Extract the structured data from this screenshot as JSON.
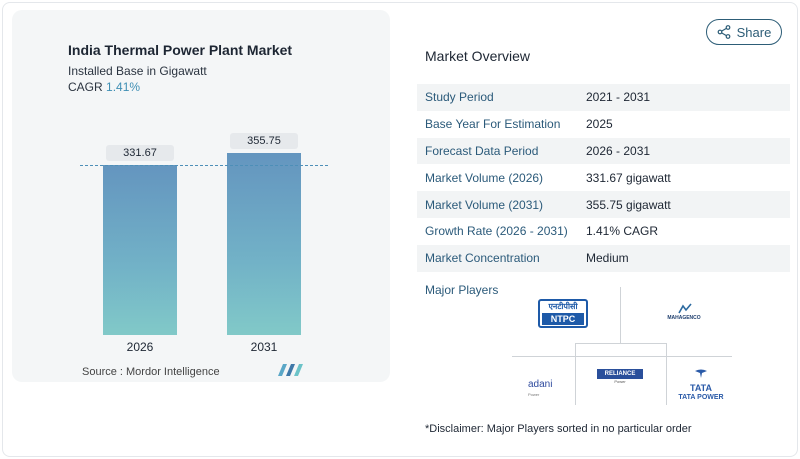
{
  "chart": {
    "title": "India Thermal Power Plant Market",
    "subtitle": "Installed Base in Gigawatt",
    "cagr_label": "CAGR",
    "cagr_value": "1.41%",
    "source": "Source :  Mordor Intelligence"
  },
  "chart_data": {
    "type": "bar",
    "categories": [
      "2026",
      "2031"
    ],
    "values": [
      331.67,
      355.75
    ],
    "value_labels": [
      "331.67",
      "355.75"
    ],
    "title": "India Thermal Power Plant Market",
    "subtitle": "Installed Base in Gigawatt",
    "ylabel": "",
    "xlabel": "",
    "ylim": [
      0,
      355.75
    ],
    "grid": false,
    "legend": "none"
  },
  "share": {
    "label": "Share"
  },
  "overview": {
    "title": "Market Overview",
    "rows": [
      {
        "key": "Study Period",
        "value": "2021 - 2031"
      },
      {
        "key": "Base Year For Estimation",
        "value": "2025"
      },
      {
        "key": "Forecast Data Period",
        "value": "2026 - 2031"
      },
      {
        "key": "Market Volume (2026)",
        "value": "331.67 gigawatt"
      },
      {
        "key": "Market Volume (2031)",
        "value": "355.75 gigawatt"
      },
      {
        "key": "Growth Rate (2026 - 2031)",
        "value": "1.41% CAGR"
      },
      {
        "key": "Market Concentration",
        "value": "Medium"
      }
    ]
  },
  "players": {
    "title": "Major Players",
    "logos": {
      "ntpc_top": "एनटीपीसी",
      "ntpc_bottom": "NTPC",
      "maha": "MAHAGENCO",
      "adani": "adani",
      "adani_sub": "Power",
      "reliance": "RELIANCE",
      "reliance_sub": "Power",
      "tata_mark": "TATA",
      "tata_full": "TATA POWER"
    }
  },
  "disclaimer": "*Disclaimer: Major Players sorted in no particular order",
  "colors": {
    "accent": "#3f8fb4",
    "bar_top": "#6495bf",
    "bar_bottom": "#81c9c8",
    "link": "#2b5a7a"
  }
}
